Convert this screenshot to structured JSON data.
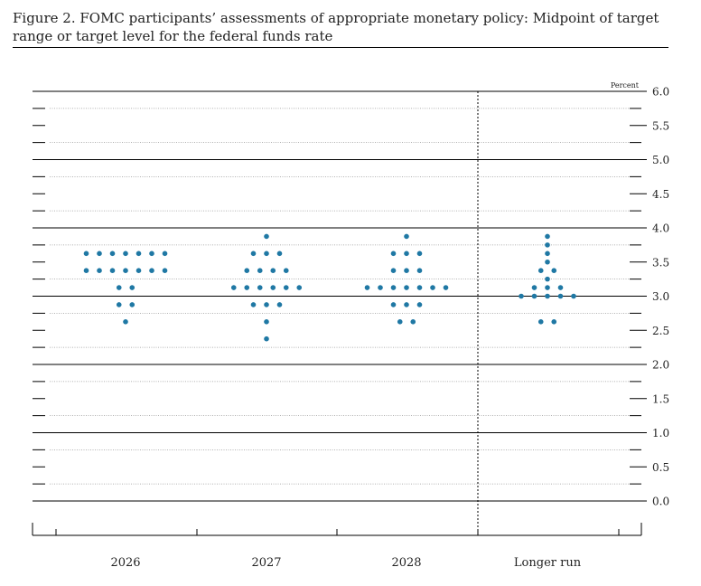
{
  "figure": {
    "title": "Figure 2. FOMC participants’ assessments of appropriate monetary policy: Midpoint of target range or target level for the federal funds rate"
  },
  "chart_data": {
    "type": "scatter",
    "unit_label": "Percent",
    "categories": [
      "2026",
      "2027",
      "2028",
      "Longer run"
    ],
    "ylim": [
      0.0,
      6.0
    ],
    "yticks": [
      "0.0",
      "0.5",
      "1.0",
      "1.5",
      "2.0",
      "2.5",
      "3.0",
      "3.5",
      "4.0",
      "4.5",
      "5.0",
      "5.5",
      "6.0"
    ],
    "dot_color": "#1f78a4",
    "grid": true,
    "dots": [
      {
        "category": "2026",
        "levels": [
          {
            "rate": 3.625,
            "count": 7
          },
          {
            "rate": 3.375,
            "count": 7
          },
          {
            "rate": 3.125,
            "count": 2
          },
          {
            "rate": 2.875,
            "count": 2
          },
          {
            "rate": 2.625,
            "count": 1
          }
        ]
      },
      {
        "category": "2027",
        "levels": [
          {
            "rate": 3.875,
            "count": 1
          },
          {
            "rate": 3.625,
            "count": 3
          },
          {
            "rate": 3.375,
            "count": 4
          },
          {
            "rate": 3.125,
            "count": 6
          },
          {
            "rate": 2.875,
            "count": 3
          },
          {
            "rate": 2.625,
            "count": 1
          },
          {
            "rate": 2.375,
            "count": 1
          }
        ]
      },
      {
        "category": "2028",
        "levels": [
          {
            "rate": 3.875,
            "count": 1
          },
          {
            "rate": 3.625,
            "count": 3
          },
          {
            "rate": 3.375,
            "count": 3
          },
          {
            "rate": 3.125,
            "count": 7
          },
          {
            "rate": 2.875,
            "count": 3
          },
          {
            "rate": 2.625,
            "count": 2
          }
        ]
      },
      {
        "category": "Longer run",
        "levels": [
          {
            "rate": 3.875,
            "count": 1
          },
          {
            "rate": 3.75,
            "count": 1
          },
          {
            "rate": 3.625,
            "count": 1
          },
          {
            "rate": 3.5,
            "count": 1
          },
          {
            "rate": 3.375,
            "count": 2
          },
          {
            "rate": 3.25,
            "count": 1
          },
          {
            "rate": 3.125,
            "count": 3
          },
          {
            "rate": 3.0,
            "count": 5
          },
          {
            "rate": 2.625,
            "count": 2
          }
        ]
      }
    ]
  }
}
